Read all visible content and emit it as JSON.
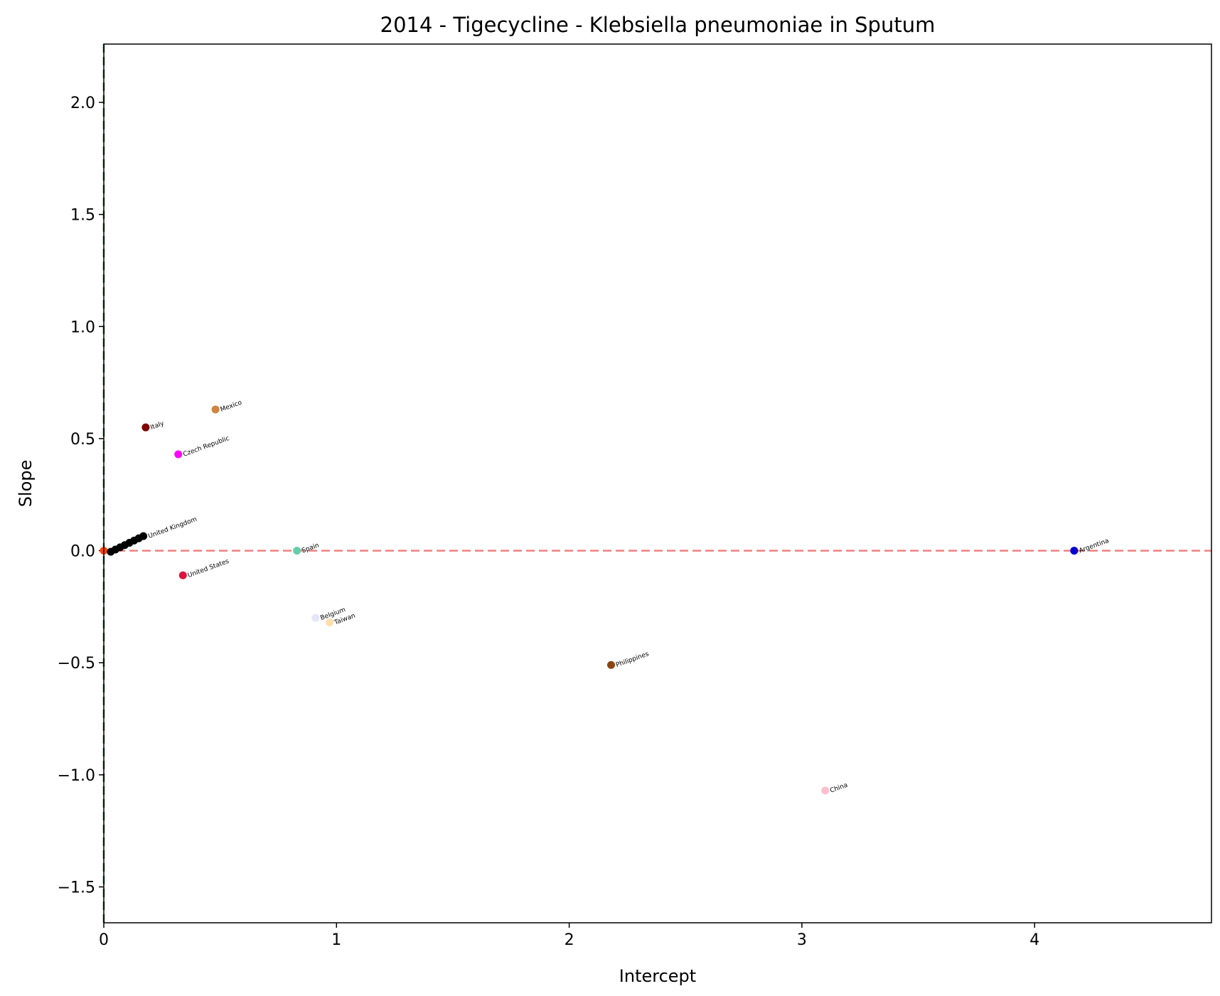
{
  "chart_data": {
    "type": "scatter",
    "title": "2014 - Tigecycline - Klebsiella pneumoniae in Sputum",
    "xlabel": "Intercept",
    "ylabel": "Slope",
    "xlim": [
      0,
      4.76
    ],
    "ylim": [
      -1.66,
      2.26
    ],
    "xticks": [
      0,
      1,
      2,
      3,
      4
    ],
    "yticks": [
      -1.5,
      -1.0,
      -0.5,
      0.0,
      0.5,
      1.0,
      1.5,
      2.0
    ],
    "xtick_labels": [
      "0",
      "1",
      "2",
      "3",
      "4"
    ],
    "ytick_labels": [
      "−1.5",
      "−1.0",
      "−0.5",
      "0.0",
      "0.5",
      "1.0",
      "1.5",
      "2.0"
    ],
    "grid": false,
    "reference_lines": [
      {
        "orientation": "horizontal",
        "value": 0.0,
        "color": "#f08080",
        "style": "dashed"
      },
      {
        "orientation": "vertical",
        "value": 0.0,
        "color": "#2e5e2e",
        "style": "dashed"
      }
    ],
    "points": [
      {
        "label": "Italy",
        "x": 0.18,
        "y": 0.55,
        "color": "#800000"
      },
      {
        "label": "Mexico",
        "x": 0.48,
        "y": 0.63,
        "color": "#cd853f"
      },
      {
        "label": "Czech Republic",
        "x": 0.32,
        "y": 0.43,
        "color": "#ff00ff"
      },
      {
        "label": "United States",
        "x": 0.34,
        "y": -0.11,
        "color": "#dc143c"
      },
      {
        "label": "Spain",
        "x": 0.83,
        "y": 0.0,
        "color": "#66cdaa"
      },
      {
        "label": "Belgium",
        "x": 0.91,
        "y": -0.3,
        "color": "#e6e6fa"
      },
      {
        "label": "Taiwan",
        "x": 0.97,
        "y": -0.32,
        "color": "#ffdead"
      },
      {
        "label": "Philippines",
        "x": 2.18,
        "y": -0.51,
        "color": "#8b4513"
      },
      {
        "label": "China",
        "x": 3.1,
        "y": -1.07,
        "color": "#ffc0cb"
      },
      {
        "label": "Argentina",
        "x": 4.17,
        "y": 0.0,
        "color": "#0000cd"
      },
      {
        "label": "",
        "x": 0.0,
        "y": 0.0,
        "color": "#ff4500"
      },
      {
        "label": "",
        "x": 0.03,
        "y": -0.005,
        "color": "#000000"
      },
      {
        "label": "",
        "x": 0.05,
        "y": 0.005,
        "color": "#000000"
      },
      {
        "label": "",
        "x": 0.07,
        "y": 0.015,
        "color": "#000000"
      },
      {
        "label": "",
        "x": 0.09,
        "y": 0.025,
        "color": "#000000"
      },
      {
        "label": "",
        "x": 0.11,
        "y": 0.035,
        "color": "#000000"
      },
      {
        "label": "",
        "x": 0.13,
        "y": 0.045,
        "color": "#000000"
      },
      {
        "label": "",
        "x": 0.15,
        "y": 0.055,
        "color": "#000000"
      },
      {
        "label": "United Kingdom",
        "x": 0.17,
        "y": 0.065,
        "color": "#000000"
      }
    ]
  }
}
